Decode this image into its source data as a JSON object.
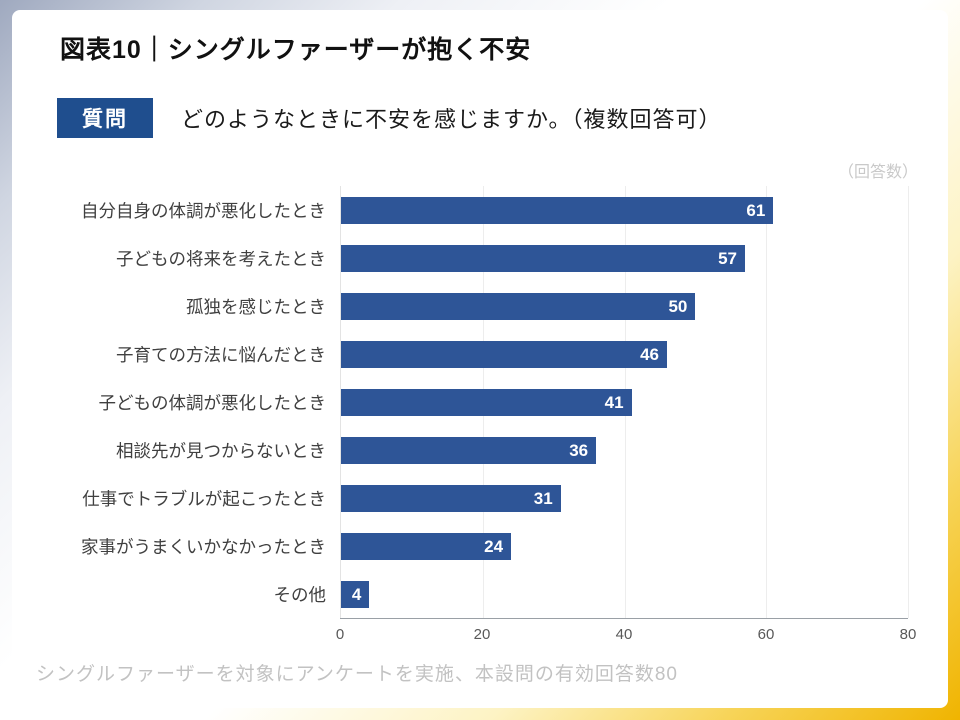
{
  "page": {
    "title": "図表10｜シングルファーザーが抱く不安",
    "question_badge": "質問",
    "question_text": "どのようなときに不安を感じますか。（複数回答可）",
    "unit_note": "（回答数）",
    "footnote": "シングルファーザーを対象にアンケートを実施、本設問の有効回答数80"
  },
  "colors": {
    "bar": "#2E5597",
    "badge_bg": "#1F4E8E",
    "axis": "#9aa0a6",
    "footnote": "#c2c2c2"
  },
  "chart_data": {
    "type": "bar",
    "orientation": "horizontal",
    "title": "図表10｜シングルファーザーが抱く不安",
    "xlabel": "",
    "ylabel": "",
    "unit": "回答数",
    "categories": [
      "自分自身の体調が悪化したとき",
      "子どもの将来を考えたとき",
      "孤独を感じたとき",
      "子育ての方法に悩んだとき",
      "子どもの体調が悪化したとき",
      "相談先が見つからないとき",
      "仕事でトラブルが起こったとき",
      "家事がうまくいかなかったとき",
      "その他"
    ],
    "values": [
      61,
      57,
      50,
      46,
      41,
      36,
      31,
      24,
      4
    ],
    "xlim": [
      0,
      80
    ],
    "xticks": [
      0,
      20,
      40,
      60,
      80
    ],
    "grid": true,
    "value_labels": true,
    "legend_position": "none"
  }
}
